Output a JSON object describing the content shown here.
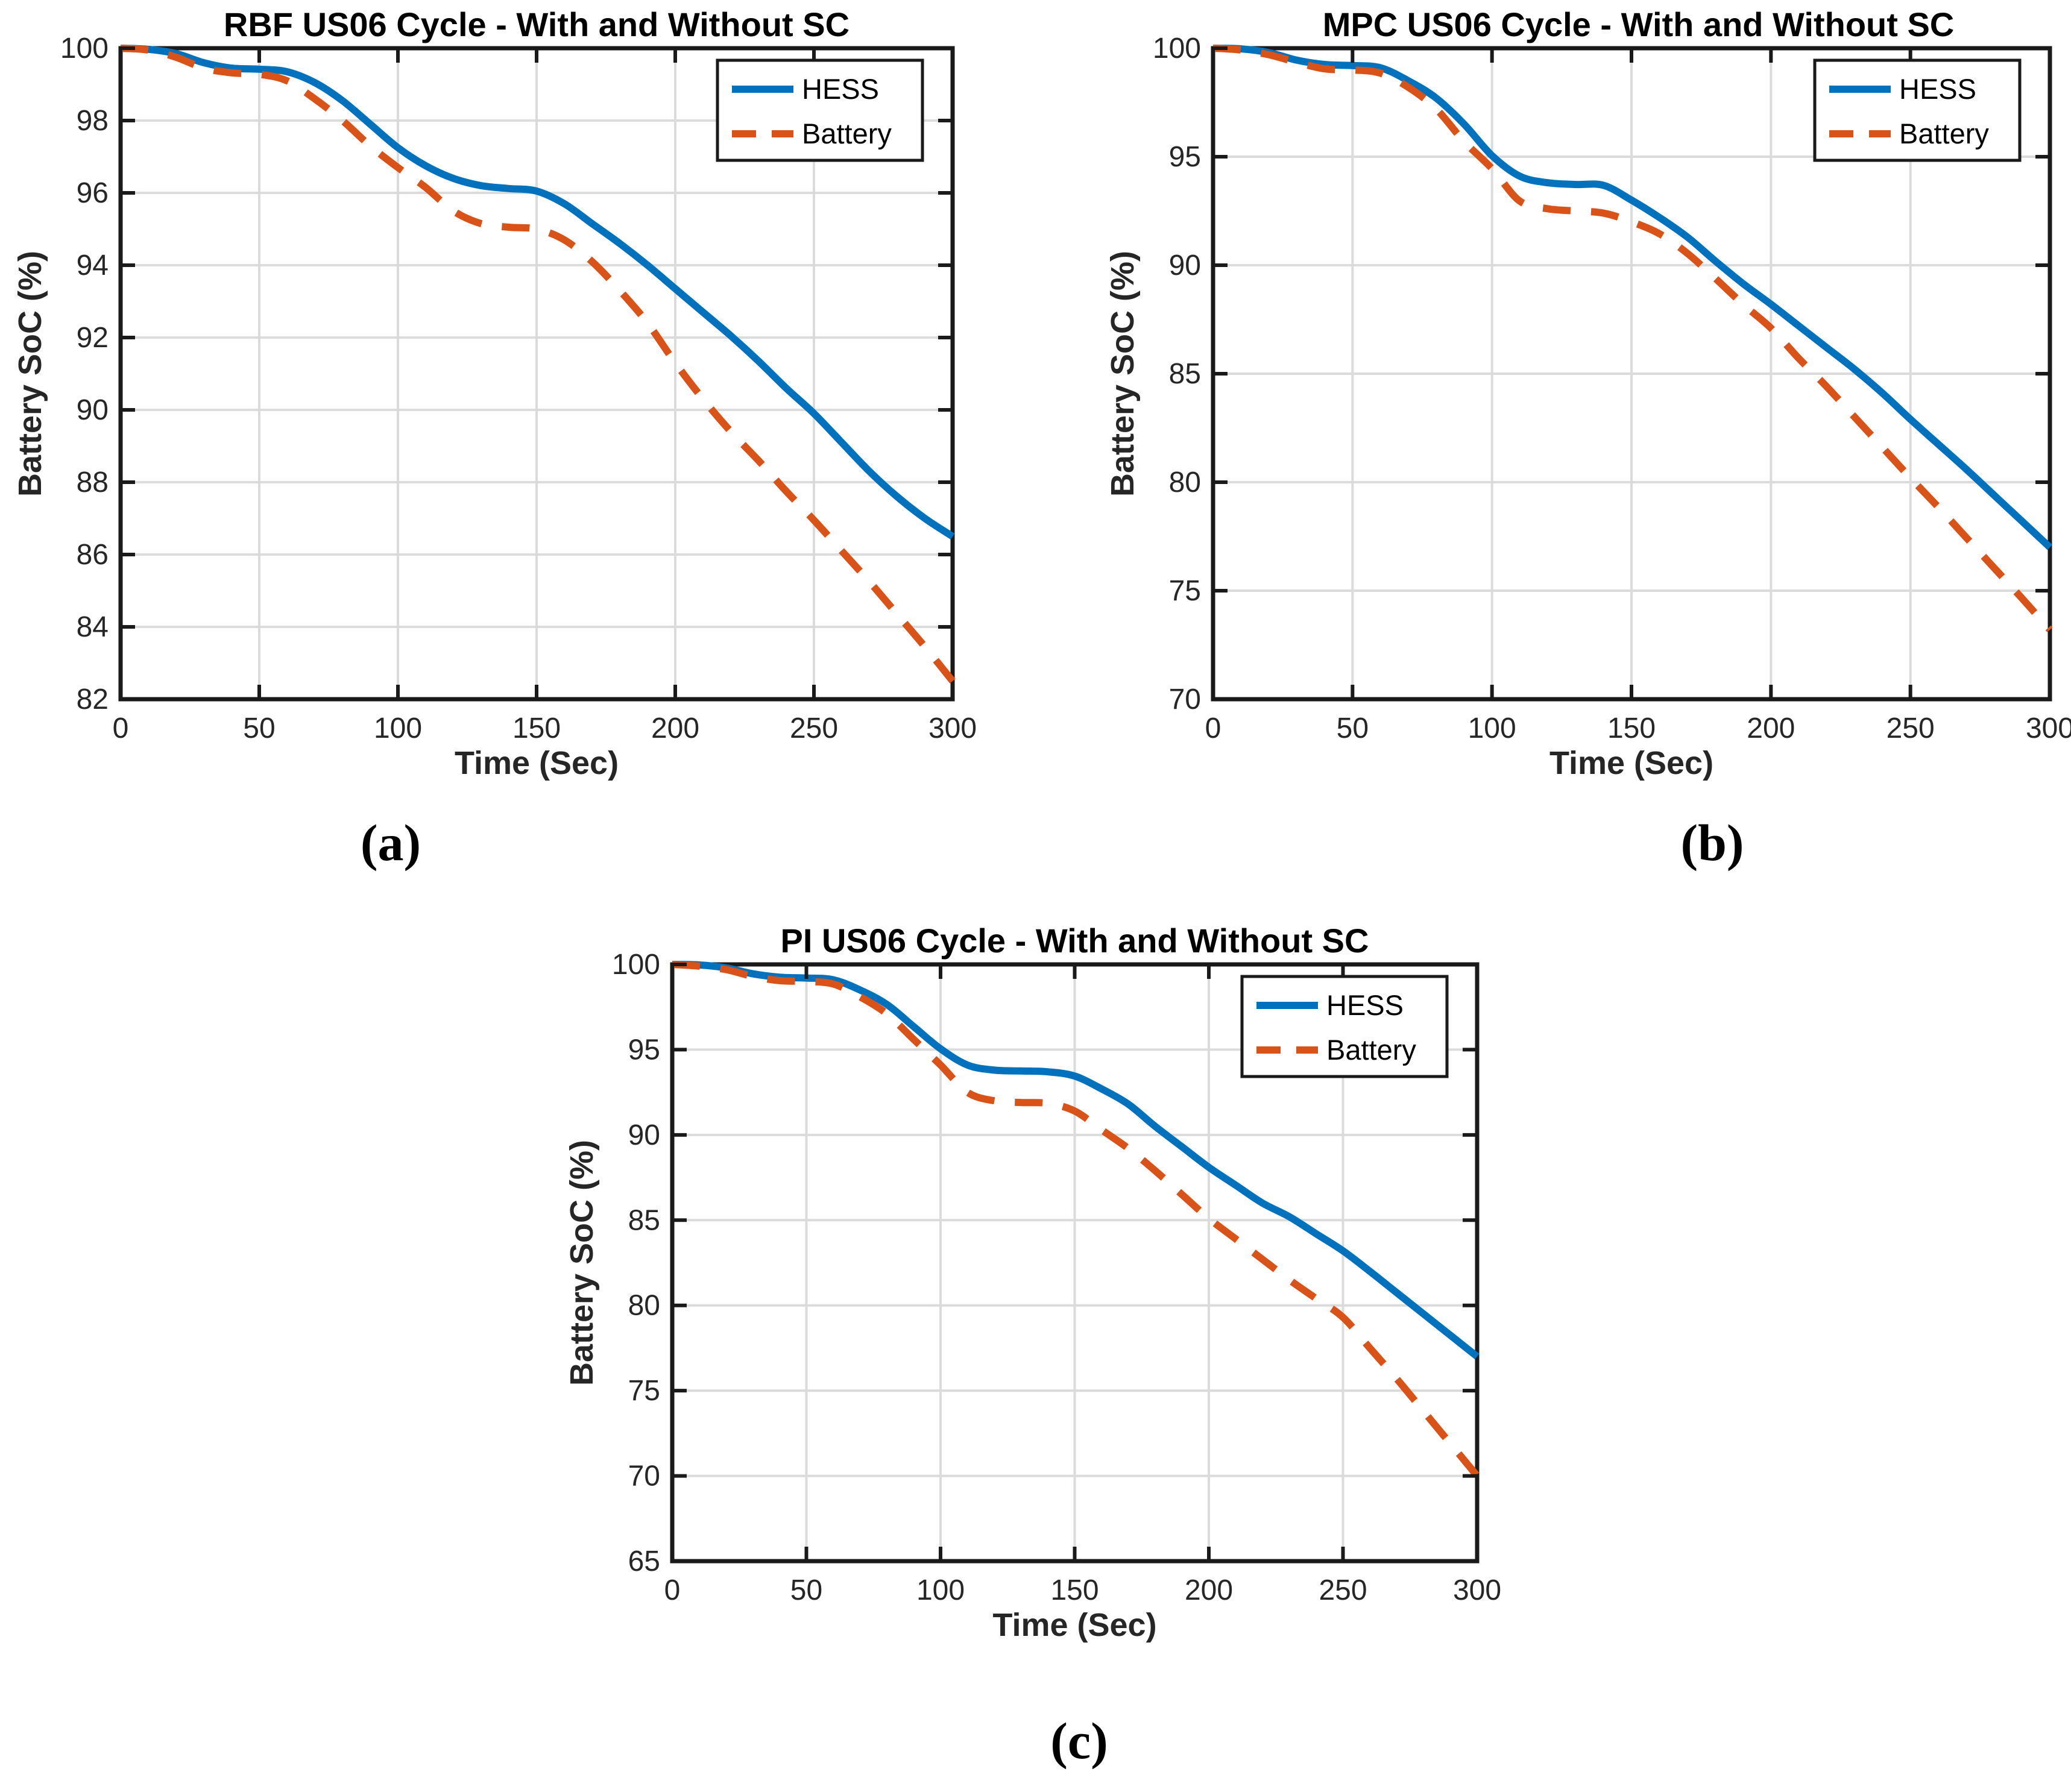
{
  "page": {
    "background": "#FFFFFF"
  },
  "colors": {
    "hess": "#0072BD",
    "battery": "#D95319",
    "grid": "#DBDBDB",
    "axis": "#1A1A1A",
    "tick_text": "#262626",
    "title_text": "#000000",
    "legend_bg": "#FFFFFF",
    "legend_border": "#1A1A1A"
  },
  "captions": {
    "a": "(a)",
    "b": "(b)",
    "c": "(c)"
  },
  "chart_data": [
    {
      "id": "a",
      "type": "line",
      "title": "RBF US06 Cycle - With and Without SC",
      "xlabel": "Time (Sec)",
      "ylabel": "Battery SoC (%)",
      "xlim": [
        0,
        300
      ],
      "ylim": [
        82,
        100
      ],
      "xticks": [
        0,
        50,
        100,
        150,
        200,
        250,
        300
      ],
      "yticks": [
        82,
        84,
        86,
        88,
        90,
        92,
        94,
        96,
        98,
        100
      ],
      "grid": true,
      "legend_position": "top-right",
      "x": [
        0,
        10,
        20,
        30,
        40,
        50,
        60,
        70,
        80,
        90,
        100,
        110,
        120,
        130,
        140,
        150,
        160,
        170,
        180,
        190,
        200,
        210,
        220,
        230,
        240,
        250,
        260,
        270,
        280,
        290,
        300
      ],
      "series": [
        {
          "name": "HESS",
          "line_style": "solid",
          "color": "hess",
          "values": [
            100,
            99.97,
            99.85,
            99.6,
            99.45,
            99.42,
            99.35,
            99.05,
            98.55,
            97.9,
            97.25,
            96.75,
            96.4,
            96.2,
            96.12,
            96.05,
            95.7,
            95.15,
            94.6,
            94.0,
            93.35,
            92.7,
            92.05,
            91.35,
            90.6,
            89.9,
            89.1,
            88.3,
            87.6,
            87.0,
            86.5
          ]
        },
        {
          "name": "Battery",
          "line_style": "dashed",
          "color": "battery",
          "values": [
            100,
            99.95,
            99.75,
            99.45,
            99.32,
            99.28,
            99.1,
            98.6,
            98.0,
            97.3,
            96.7,
            96.15,
            95.5,
            95.15,
            95.05,
            95.0,
            94.7,
            94.1,
            93.3,
            92.4,
            91.3,
            90.3,
            89.4,
            88.6,
            87.75,
            86.95,
            86.1,
            85.25,
            84.35,
            83.45,
            82.5
          ]
        }
      ]
    },
    {
      "id": "b",
      "type": "line",
      "title": "MPC US06 Cycle - With and Without SC",
      "xlabel": "Time (Sec)",
      "ylabel": "Battery SoC (%)",
      "xlim": [
        0,
        300
      ],
      "ylim": [
        70,
        100
      ],
      "xticks": [
        0,
        50,
        100,
        150,
        200,
        250,
        300
      ],
      "yticks": [
        70,
        75,
        80,
        85,
        90,
        95,
        100
      ],
      "grid": true,
      "legend_position": "top-right",
      "x": [
        0,
        10,
        20,
        30,
        40,
        50,
        60,
        70,
        80,
        90,
        100,
        110,
        120,
        130,
        140,
        150,
        160,
        170,
        180,
        190,
        200,
        210,
        220,
        230,
        240,
        250,
        260,
        270,
        280,
        290,
        300
      ],
      "series": [
        {
          "name": "HESS",
          "line_style": "solid",
          "color": "hess",
          "values": [
            100,
            99.97,
            99.8,
            99.45,
            99.25,
            99.2,
            99.1,
            98.5,
            97.7,
            96.5,
            95.05,
            94.1,
            93.8,
            93.72,
            93.68,
            93.0,
            92.2,
            91.3,
            90.2,
            89.15,
            88.2,
            87.2,
            86.2,
            85.2,
            84.1,
            82.9,
            81.75,
            80.6,
            79.4,
            78.2,
            77.0
          ]
        },
        {
          "name": "Battery",
          "line_style": "dashed",
          "color": "battery",
          "values": [
            100,
            99.92,
            99.7,
            99.35,
            99.05,
            99.0,
            98.85,
            98.2,
            97.2,
            95.7,
            94.45,
            92.95,
            92.6,
            92.5,
            92.4,
            92.0,
            91.45,
            90.55,
            89.4,
            88.2,
            87.1,
            85.7,
            84.4,
            83.0,
            81.6,
            80.2,
            78.85,
            77.45,
            76.05,
            74.65,
            73.2
          ]
        }
      ]
    },
    {
      "id": "c",
      "type": "line",
      "title": "PI US06 Cycle - With and Without SC",
      "xlabel": "Time (Sec)",
      "ylabel": "Battery SoC (%)",
      "xlim": [
        0,
        300
      ],
      "ylim": [
        65,
        100
      ],
      "xticks": [
        0,
        50,
        100,
        150,
        200,
        250,
        300
      ],
      "yticks": [
        65,
        70,
        75,
        80,
        85,
        90,
        95,
        100
      ],
      "grid": true,
      "legend_position": "top-right",
      "x": [
        0,
        10,
        20,
        30,
        40,
        50,
        60,
        70,
        80,
        90,
        100,
        110,
        120,
        130,
        140,
        150,
        160,
        170,
        180,
        190,
        200,
        210,
        220,
        230,
        240,
        250,
        260,
        270,
        280,
        290,
        300
      ],
      "series": [
        {
          "name": "HESS",
          "line_style": "solid",
          "color": "hess",
          "values": [
            100,
            99.97,
            99.8,
            99.45,
            99.25,
            99.2,
            99.1,
            98.5,
            97.65,
            96.35,
            95.05,
            94.1,
            93.8,
            93.75,
            93.7,
            93.45,
            92.7,
            91.8,
            90.5,
            89.3,
            88.1,
            87.05,
            86.0,
            85.2,
            84.2,
            83.2,
            82.0,
            80.75,
            79.5,
            78.25,
            77.0
          ]
        },
        {
          "name": "Battery",
          "line_style": "dashed",
          "color": "battery",
          "values": [
            100,
            99.9,
            99.7,
            99.3,
            99.05,
            99.0,
            98.85,
            98.1,
            97.1,
            95.6,
            94.1,
            92.5,
            92.0,
            91.9,
            91.85,
            91.4,
            90.3,
            89.2,
            87.9,
            86.5,
            85.1,
            83.9,
            82.7,
            81.5,
            80.4,
            79.3,
            77.5,
            75.7,
            73.8,
            71.9,
            70.0
          ]
        }
      ]
    }
  ]
}
